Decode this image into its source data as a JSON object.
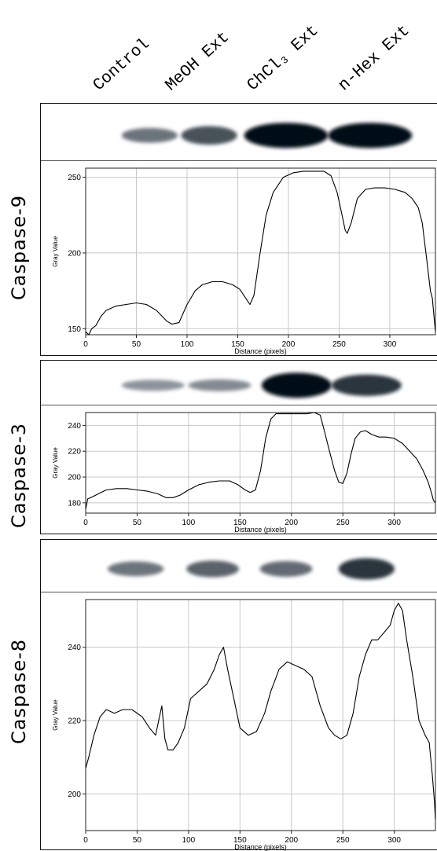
{
  "lanes": [
    "Control",
    "MeOH Ext",
    "ChCl₃ Ext",
    "n-Hex Ext"
  ],
  "chart_data": [
    {
      "type": "line",
      "panel_label": "Caspase-9",
      "xlabel": "Distance (pixels)",
      "ylabel": "Gray Value",
      "xlim": [
        0,
        345
      ],
      "ylim": [
        146,
        256
      ],
      "xticks": [
        0,
        50,
        100,
        150,
        200,
        250,
        300
      ],
      "yticks": [
        150,
        200,
        250
      ],
      "grid": true,
      "bands": [
        {
          "lane": "Control",
          "center": 0.21,
          "intensity": 0.45,
          "width": 0.16
        },
        {
          "lane": "MeOH Ext",
          "center": 0.38,
          "intensity": 0.65,
          "width": 0.16
        },
        {
          "lane": "ChCl₃ Ext",
          "center": 0.6,
          "intensity": 1.0,
          "width": 0.24
        },
        {
          "lane": "n-Hex Ext",
          "center": 0.84,
          "intensity": 1.0,
          "width": 0.24
        }
      ],
      "x": [
        0,
        3,
        6,
        10,
        15,
        20,
        30,
        40,
        50,
        60,
        70,
        80,
        85,
        92,
        100,
        108,
        115,
        125,
        135,
        145,
        152,
        158,
        162,
        166,
        172,
        178,
        185,
        195,
        205,
        215,
        225,
        235,
        242,
        248,
        252,
        256,
        258,
        262,
        268,
        276,
        285,
        295,
        305,
        315,
        322,
        328,
        332,
        336,
        340,
        342,
        344,
        345
      ],
      "y": [
        148,
        146,
        150,
        152,
        158,
        162,
        165,
        166,
        167,
        166,
        162,
        155,
        153,
        154,
        166,
        175,
        179,
        181,
        181,
        179,
        176,
        170,
        166,
        172,
        200,
        225,
        240,
        250,
        253,
        254,
        254,
        254,
        251,
        240,
        228,
        215,
        213,
        220,
        236,
        242,
        243,
        243,
        242,
        240,
        236,
        230,
        220,
        198,
        175,
        170,
        155,
        148
      ]
    },
    {
      "type": "line",
      "panel_label": "Caspase-3",
      "xlabel": "Distance (pixels)",
      "ylabel": "Gray Value",
      "xlim": [
        0,
        340
      ],
      "ylim": [
        172,
        250
      ],
      "xticks": [
        0,
        50,
        100,
        150,
        200,
        250,
        300
      ],
      "yticks": [
        180,
        200,
        220,
        240
      ],
      "grid": true,
      "bands": [
        {
          "lane": "Control",
          "center": 0.22,
          "intensity": 0.25,
          "width": 0.18
        },
        {
          "lane": "MeOH Ext",
          "center": 0.41,
          "intensity": 0.3,
          "width": 0.18
        },
        {
          "lane": "ChCl₃ Ext",
          "center": 0.63,
          "intensity": 1.0,
          "width": 0.2
        },
        {
          "lane": "n-Hex Ext",
          "center": 0.83,
          "intensity": 0.8,
          "width": 0.2
        }
      ],
      "x": [
        0,
        2,
        5,
        10,
        15,
        20,
        30,
        40,
        50,
        60,
        70,
        78,
        85,
        92,
        100,
        110,
        120,
        130,
        140,
        148,
        155,
        160,
        165,
        170,
        175,
        180,
        185,
        195,
        205,
        215,
        222,
        228,
        232,
        237,
        242,
        246,
        250,
        254,
        258,
        262,
        267,
        272,
        278,
        285,
        292,
        300,
        308,
        315,
        322,
        328,
        333,
        336,
        338,
        340
      ],
      "y": [
        175,
        183,
        184,
        186,
        188,
        190,
        191,
        191,
        190,
        189,
        187,
        184,
        184,
        186,
        190,
        194,
        196,
        197,
        197,
        194,
        190,
        188,
        190,
        205,
        230,
        245,
        249,
        249,
        249,
        249,
        250,
        248,
        236,
        220,
        205,
        196,
        195,
        203,
        218,
        230,
        235,
        236,
        233,
        231,
        231,
        230,
        226,
        220,
        214,
        205,
        196,
        188,
        182,
        180
      ]
    },
    {
      "type": "line",
      "panel_label": "Caspase-8",
      "xlabel": "Distance (pixels)",
      "ylabel": "Gray Value",
      "xlim": [
        0,
        340
      ],
      "ylim": [
        190,
        253
      ],
      "xticks": [
        0,
        50,
        100,
        150,
        200,
        250,
        300
      ],
      "yticks": [
        200,
        220,
        240
      ],
      "grid": true,
      "bands": [
        {
          "lane": "Control",
          "center": 0.17,
          "intensity": 0.45,
          "width": 0.16
        },
        {
          "lane": "MeOH Ext",
          "center": 0.39,
          "intensity": 0.55,
          "width": 0.15
        },
        {
          "lane": "ChCl₃ Ext",
          "center": 0.6,
          "intensity": 0.5,
          "width": 0.15
        },
        {
          "lane": "n-Hex Ext",
          "center": 0.83,
          "intensity": 0.8,
          "width": 0.16
        }
      ],
      "x": [
        0,
        3,
        8,
        14,
        20,
        28,
        36,
        45,
        55,
        62,
        68,
        71,
        74,
        77,
        80,
        85,
        90,
        96,
        102,
        110,
        118,
        125,
        130,
        134,
        138,
        144,
        150,
        158,
        166,
        174,
        180,
        188,
        196,
        204,
        212,
        220,
        228,
        236,
        242,
        248,
        254,
        260,
        266,
        272,
        278,
        284,
        290,
        296,
        300,
        304,
        308,
        312,
        318,
        324,
        330,
        334,
        337,
        339,
        340
      ],
      "y": [
        207,
        210,
        216,
        221,
        223,
        222,
        223,
        223,
        221,
        218,
        216,
        220,
        224,
        215,
        212,
        212,
        214,
        218,
        226,
        228,
        230,
        234,
        238,
        240,
        234,
        226,
        218,
        216,
        217,
        222,
        228,
        234,
        236,
        235,
        234,
        232,
        224,
        218,
        216,
        215,
        216,
        222,
        232,
        238,
        242,
        242,
        244,
        246,
        250,
        252,
        250,
        242,
        232,
        220,
        216,
        214,
        205,
        198,
        193
      ]
    }
  ]
}
